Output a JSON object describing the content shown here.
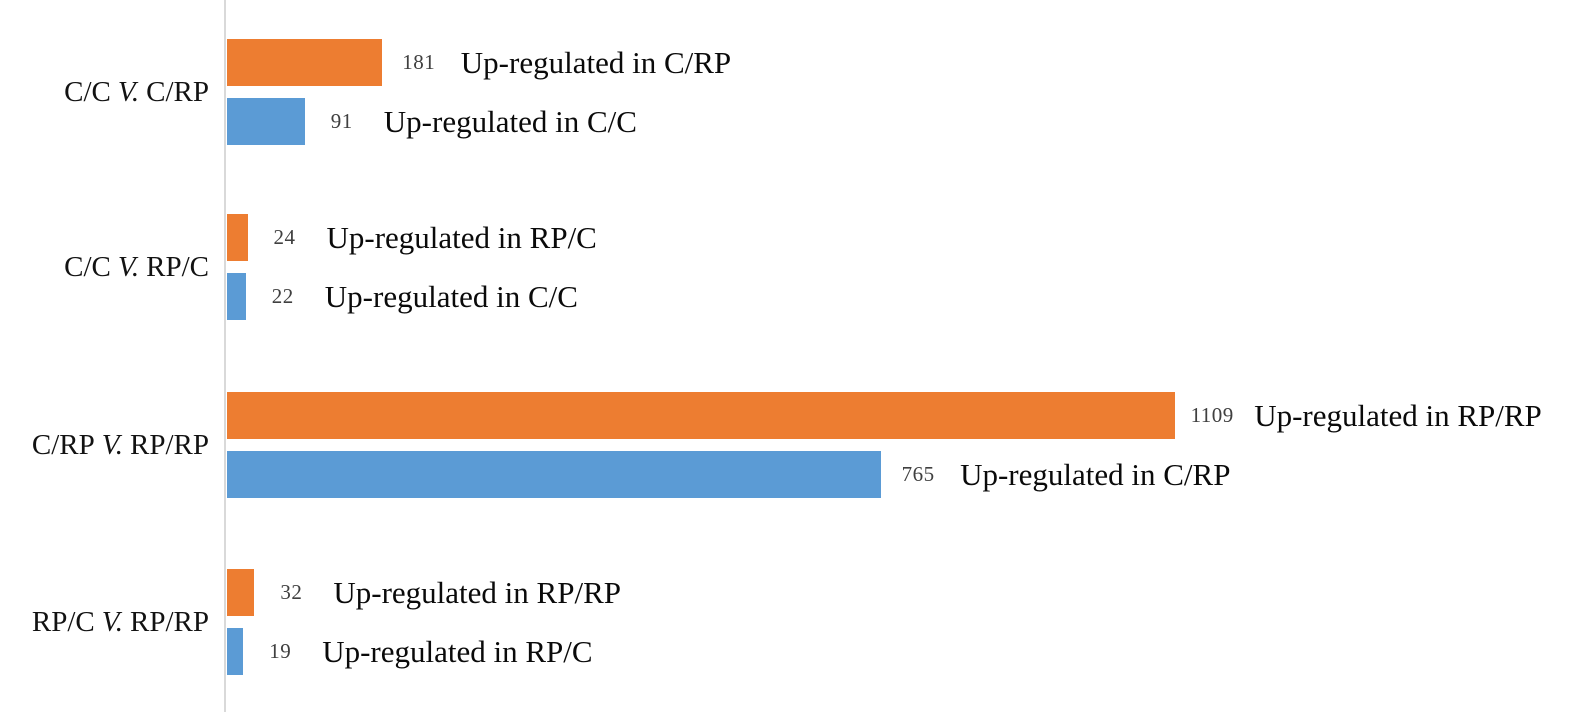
{
  "chart_data": {
    "type": "bar",
    "orientation": "horizontal",
    "title": "",
    "x_axis": {
      "visible": false,
      "tick_labels": []
    },
    "legend": {
      "visible": false
    },
    "grid": false,
    "colors": {
      "top_bar": "#ED7D31",
      "bottom_bar": "#5B9BD5",
      "axis_line": "#D9D9D9",
      "value_label": "#404040",
      "annotation_text": "#000000"
    },
    "groups": [
      {
        "category": {
          "left": "C/C",
          "versus": "V.",
          "right": "C/RP"
        },
        "bars": [
          {
            "color": "#ED7D31",
            "value": 181,
            "annotation": "Up-regulated in C/RP"
          },
          {
            "color": "#5B9BD5",
            "value": 91,
            "annotation": "Up-regulated in C/C"
          }
        ]
      },
      {
        "category": {
          "left": "C/C",
          "versus": "V.",
          "right": "RP/C"
        },
        "bars": [
          {
            "color": "#ED7D31",
            "value": 24,
            "annotation": "Up-regulated in RP/C"
          },
          {
            "color": "#5B9BD5",
            "value": 22,
            "annotation": "Up-regulated in C/C"
          }
        ]
      },
      {
        "category": {
          "left": "C/RP",
          "versus": "V.",
          "right": "RP/RP"
        },
        "bars": [
          {
            "color": "#ED7D31",
            "value": 1109,
            "annotation": "Up-regulated in RP/RP"
          },
          {
            "color": "#5B9BD5",
            "value": 765,
            "annotation": "Up-regulated in C/RP"
          }
        ]
      },
      {
        "category": {
          "left": "RP/C",
          "versus": "V.",
          "right": "RP/RP"
        },
        "bars": [
          {
            "color": "#ED7D31",
            "value": 32,
            "annotation": "Up-regulated in RP/RP"
          },
          {
            "color": "#5B9BD5",
            "value": 19,
            "annotation": "Up-regulated in RP/C"
          }
        ]
      }
    ]
  }
}
